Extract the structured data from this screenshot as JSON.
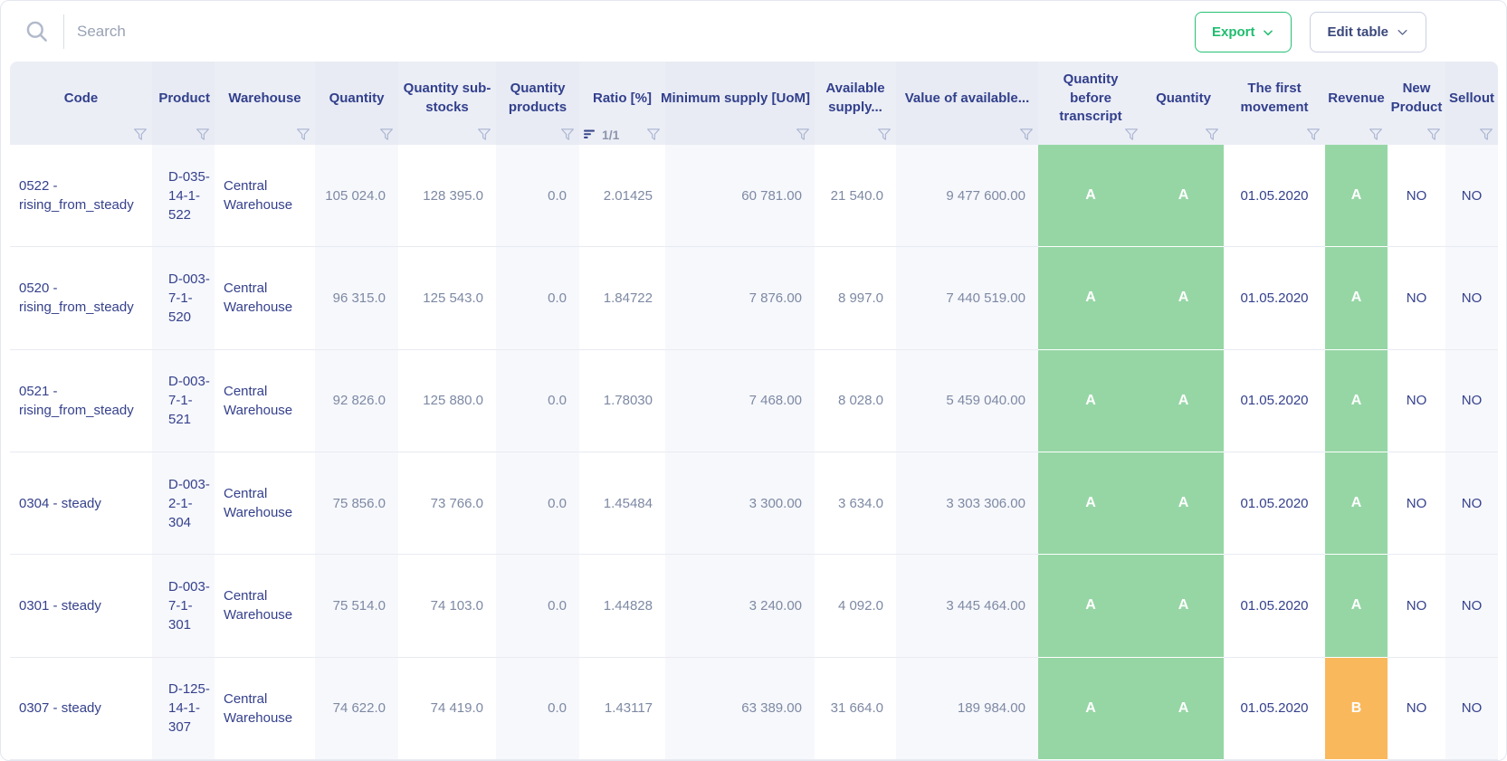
{
  "toolbar": {
    "search_placeholder": "Search",
    "export_label": "Export",
    "edit_table_label": "Edit table"
  },
  "table": {
    "columns": [
      {
        "label": "Code"
      },
      {
        "label": "Product"
      },
      {
        "label": "Warehouse"
      },
      {
        "label": "Quantity"
      },
      {
        "label": "Quantity sub-stocks"
      },
      {
        "label": "Quantity products"
      },
      {
        "label": "Ratio [%]",
        "sort_indicator": "1/1"
      },
      {
        "label": "Minimum supply [UoM]"
      },
      {
        "label": "Available supply..."
      },
      {
        "label": "Value of available..."
      },
      {
        "label": "Quantity before transcript"
      },
      {
        "label": "Quantity"
      },
      {
        "label": "The first movement"
      },
      {
        "label": "Revenue"
      },
      {
        "label": "New Product"
      },
      {
        "label": "Sellout"
      }
    ],
    "rows": [
      {
        "cells": [
          "0522 - rising_from_steady",
          "D-035-14-1-522",
          "Central Warehouse",
          "105 024.0",
          "128 395.0",
          "0.0",
          "2.01425",
          "60 781.00",
          "21 540.0",
          "9 477 600.00",
          "A",
          "A",
          "01.05.2020",
          "A",
          "NO",
          "NO"
        ]
      },
      {
        "cells": [
          "0520 - rising_from_steady",
          "D-003-7-1-520",
          "Central Warehouse",
          "96 315.0",
          "125 543.0",
          "0.0",
          "1.84722",
          "7 876.00",
          "8 997.0",
          "7 440 519.00",
          "A",
          "A",
          "01.05.2020",
          "A",
          "NO",
          "NO"
        ]
      },
      {
        "cells": [
          "0521 - rising_from_steady",
          "D-003-7-1-521",
          "Central Warehouse",
          "92 826.0",
          "125 880.0",
          "0.0",
          "1.78030",
          "7 468.00",
          "8 028.0",
          "5 459 040.00",
          "A",
          "A",
          "01.05.2020",
          "A",
          "NO",
          "NO"
        ]
      },
      {
        "cells": [
          "0304 - steady",
          "D-003-2-1-304",
          "Central Warehouse",
          "75 856.0",
          "73 766.0",
          "0.0",
          "1.45484",
          "3 300.00",
          "3 634.0",
          "3 303 306.00",
          "A",
          "A",
          "01.05.2020",
          "A",
          "NO",
          "NO"
        ]
      },
      {
        "cells": [
          "0301 - steady",
          "D-003-7-1-301",
          "Central Warehouse",
          "75 514.0",
          "74 103.0",
          "0.0",
          "1.44828",
          "3 240.00",
          "4 092.0",
          "3 445 464.00",
          "A",
          "A",
          "01.05.2020",
          "A",
          "NO",
          "NO"
        ]
      },
      {
        "cells": [
          "0307 - steady",
          "D-125-14-1-307",
          "Central Warehouse",
          "74 622.0",
          "74 419.0",
          "0.0",
          "1.43117",
          "63 389.00",
          "31 664.0",
          "189 984.00",
          "A",
          "A",
          "01.05.2020",
          "B",
          "NO",
          "NO"
        ]
      }
    ]
  },
  "colors": {
    "badge_colors": {
      "A": "#96d6a5",
      "B": "#fab85c"
    },
    "accent_green": "#1fbd6e",
    "header_text": "#32408c"
  }
}
